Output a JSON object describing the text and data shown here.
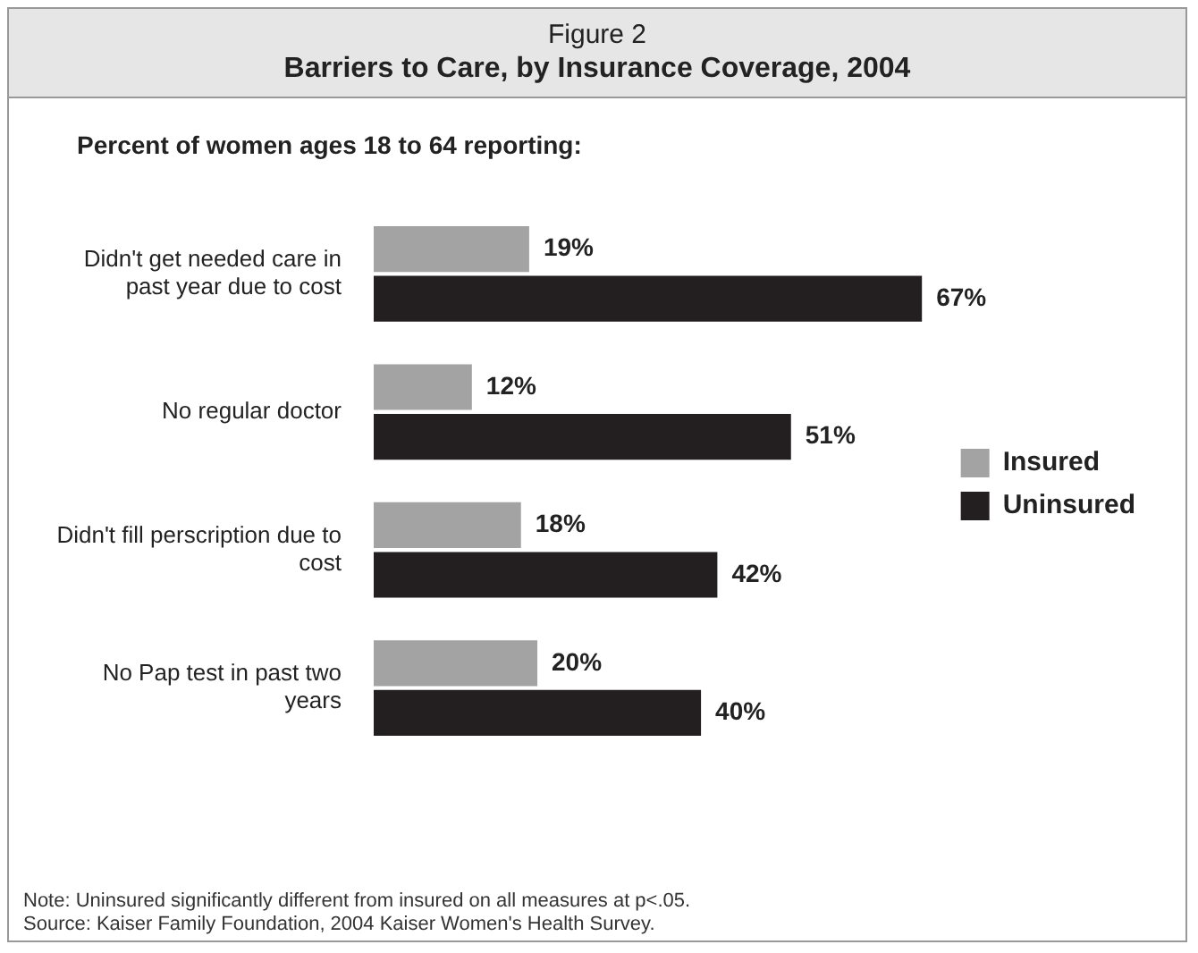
{
  "chart_data": {
    "type": "bar",
    "orientation": "horizontal",
    "title": "Barriers to Care, by Insurance Coverage, 2004",
    "subtitle": "Percent of women ages 18 to 64 reporting:",
    "categories": [
      "Didn't get needed care in past year due to cost",
      "No regular doctor",
      "Didn't fill perscription due to cost",
      "No Pap test in past two years"
    ],
    "series": [
      {
        "name": "Insured",
        "color": "#a3a3a3",
        "values": [
          19,
          12,
          18,
          20
        ],
        "value_labels": [
          "19%",
          "12%",
          "18%",
          "20%"
        ]
      },
      {
        "name": "Uninsured",
        "color": "#231f20",
        "values": [
          67,
          51,
          42,
          40
        ],
        "value_labels": [
          "67%",
          "51%",
          "42%",
          "40%"
        ]
      }
    ],
    "legend": "right",
    "annotations": [
      "Figure 2",
      "Note:  Uninsured significantly different from insured on all measures at p<.05.",
      "Source:  Kaiser Family Foundation, 2004 Kaiser Women's Health Survey."
    ]
  }
}
